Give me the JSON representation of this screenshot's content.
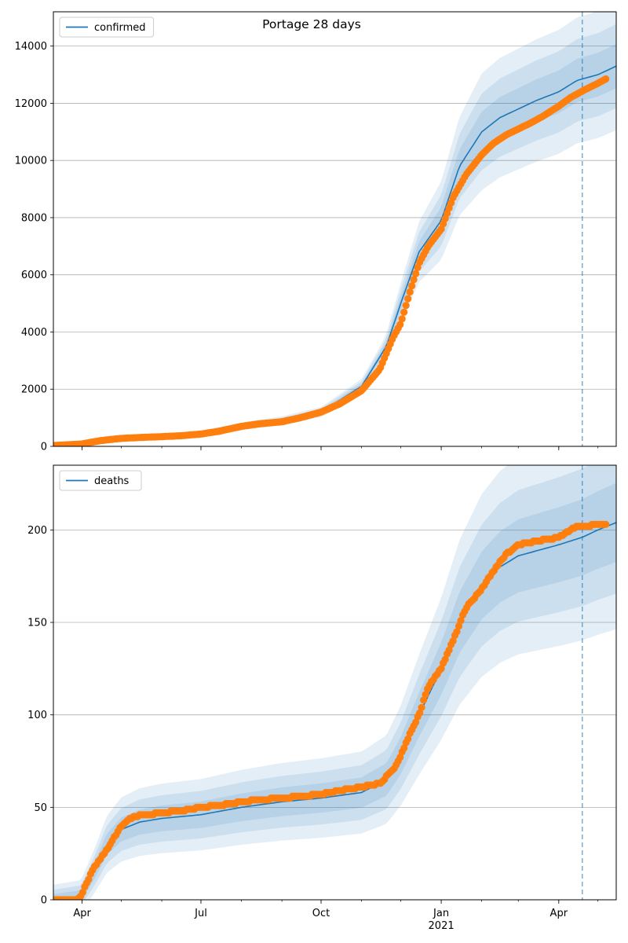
{
  "figure_title": "Portage 28 days",
  "colors": {
    "model_line": "#1f77b4",
    "observed": "#ff7f0e",
    "band": "#1f77b4",
    "grid": "#b0b0b0"
  },
  "chart_data": [
    {
      "type": "line",
      "series_name": "confirmed",
      "legend_position": "top-left",
      "grid": "horizontal",
      "xlim": [
        "2020-03-10",
        "2021-05-15"
      ],
      "ylim": [
        0,
        15200
      ],
      "yticks": [
        0,
        2000,
        4000,
        6000,
        8000,
        10000,
        12000,
        14000
      ],
      "forecast_date": "2021-04-19",
      "observed_end": "2021-05-07",
      "model": {
        "x": [
          "2020-03-10",
          "2020-04-01",
          "2020-05-01",
          "2020-06-01",
          "2020-07-01",
          "2020-08-01",
          "2020-09-01",
          "2020-10-01",
          "2020-11-01",
          "2020-11-20",
          "2020-12-01",
          "2020-12-15",
          "2021-01-01",
          "2021-01-15",
          "2021-02-01",
          "2021-02-15",
          "2021-03-01",
          "2021-03-15",
          "2021-04-01",
          "2021-04-15",
          "2021-05-01",
          "2021-05-15"
        ],
        "y": [
          0,
          100,
          280,
          350,
          430,
          700,
          900,
          1200,
          2100,
          3500,
          5000,
          6800,
          7900,
          9800,
          11000,
          11500,
          11800,
          12100,
          12400,
          12800,
          13000,
          13300
        ]
      },
      "observed": {
        "x": [
          "2020-03-10",
          "2020-03-31",
          "2020-04-15",
          "2020-05-01",
          "2020-05-15",
          "2020-06-01",
          "2020-06-15",
          "2020-07-01",
          "2020-07-15",
          "2020-08-01",
          "2020-08-15",
          "2020-09-01",
          "2020-09-15",
          "2020-10-01",
          "2020-10-15",
          "2020-11-01",
          "2020-11-15",
          "2020-11-25",
          "2020-12-01",
          "2020-12-08",
          "2020-12-15",
          "2020-12-22",
          "2021-01-01",
          "2021-01-10",
          "2021-01-20",
          "2021-02-01",
          "2021-02-10",
          "2021-02-20",
          "2021-03-01",
          "2021-03-10",
          "2021-03-20",
          "2021-04-01",
          "2021-04-10",
          "2021-04-20",
          "2021-05-01",
          "2021-05-07"
        ],
        "y": [
          30,
          80,
          200,
          280,
          310,
          340,
          370,
          430,
          530,
          700,
          790,
          860,
          1000,
          1200,
          1480,
          1950,
          2700,
          3800,
          4300,
          5400,
          6400,
          7000,
          7600,
          8700,
          9500,
          10200,
          10600,
          10900,
          11100,
          11300,
          11550,
          11900,
          12200,
          12450,
          12700,
          12850
        ]
      }
    },
    {
      "type": "line",
      "series_name": "deaths",
      "legend_position": "top-left",
      "grid": "horizontal",
      "xlim": [
        "2020-03-10",
        "2021-05-15"
      ],
      "ylim": [
        0,
        235
      ],
      "yticks": [
        0,
        50,
        100,
        150,
        200
      ],
      "forecast_date": "2021-04-19",
      "observed_end": "2021-05-07",
      "x_ticks": [
        {
          "date": "2020-04-01",
          "label": "Apr"
        },
        {
          "date": "2020-07-01",
          "label": "Jul"
        },
        {
          "date": "2020-10-01",
          "label": "Oct"
        },
        {
          "date": "2021-01-01",
          "label": "Jan",
          "sublabel": "2021"
        },
        {
          "date": "2021-04-01",
          "label": "Apr"
        }
      ],
      "model": {
        "x": [
          "2020-03-10",
          "2020-03-31",
          "2020-04-10",
          "2020-04-20",
          "2020-05-01",
          "2020-05-15",
          "2020-06-01",
          "2020-07-01",
          "2020-08-01",
          "2020-09-01",
          "2020-10-01",
          "2020-11-01",
          "2020-11-20",
          "2020-12-01",
          "2020-12-15",
          "2021-01-01",
          "2021-01-15",
          "2021-02-01",
          "2021-02-15",
          "2021-03-01",
          "2021-04-01",
          "2021-04-19",
          "2021-05-01",
          "2021-05-15"
        ],
        "y": [
          0,
          2,
          15,
          30,
          38,
          42,
          44,
          46,
          50,
          53,
          55,
          58,
          65,
          78,
          100,
          125,
          150,
          170,
          180,
          186,
          192,
          196,
          200,
          204
        ]
      },
      "observed": {
        "x": [
          "2020-03-10",
          "2020-03-28",
          "2020-04-01",
          "2020-04-05",
          "2020-04-10",
          "2020-04-15",
          "2020-04-20",
          "2020-04-25",
          "2020-05-01",
          "2020-05-10",
          "2020-05-20",
          "2020-06-01",
          "2020-06-15",
          "2020-07-01",
          "2020-07-15",
          "2020-08-01",
          "2020-08-15",
          "2020-09-01",
          "2020-09-15",
          "2020-10-01",
          "2020-10-15",
          "2020-11-01",
          "2020-11-15",
          "2020-11-25",
          "2020-12-01",
          "2020-12-08",
          "2020-12-15",
          "2020-12-22",
          "2021-01-01",
          "2021-01-10",
          "2021-01-20",
          "2021-02-01",
          "2021-02-10",
          "2021-02-20",
          "2021-03-01",
          "2021-03-15",
          "2021-04-01",
          "2021-04-10",
          "2021-04-15",
          "2021-04-20",
          "2021-05-01",
          "2021-05-07"
        ],
        "y": [
          0,
          0,
          3,
          10,
          17,
          22,
          27,
          33,
          40,
          45,
          46,
          47,
          48,
          50,
          51,
          53,
          54,
          55,
          56,
          57,
          59,
          61,
          63,
          70,
          78,
          90,
          100,
          115,
          125,
          140,
          158,
          168,
          178,
          187,
          192,
          194,
          196,
          200,
          202,
          202,
          203,
          203
        ]
      }
    }
  ]
}
